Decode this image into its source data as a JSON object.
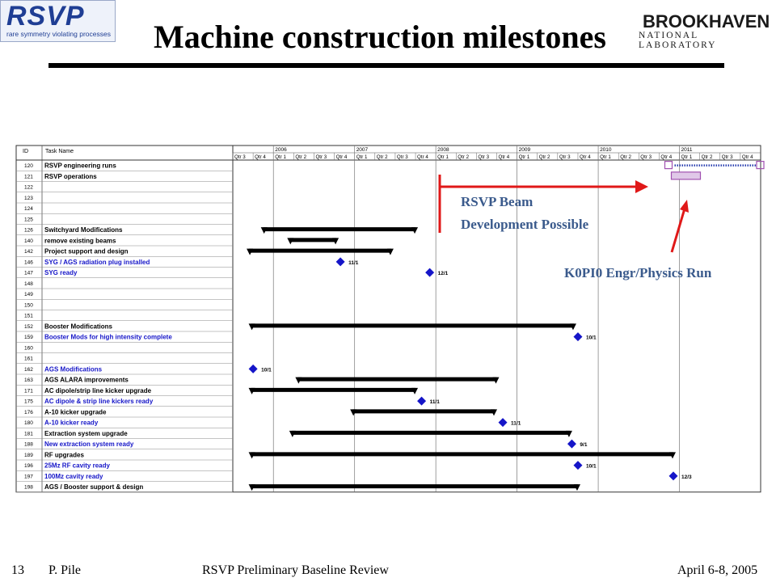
{
  "header": {
    "logo_text": "RSVP",
    "logo_subtitle": "rare symmetry violating processes",
    "title": "Machine construction milestones",
    "lab_name": "BROOKHAVEN",
    "lab_subtitle": "NATIONAL LABORATORY"
  },
  "footer": {
    "slide_number": "13",
    "author": "P. Pile",
    "event": "RSVP Preliminary Baseline Review",
    "date": "April 6-8, 2005"
  },
  "annotations": {
    "beam_dev_line1": "RSVP Beam",
    "beam_dev_line2": "Development Possible",
    "k0pi0": "K0PI0 Engr/Physics Run"
  },
  "colors": {
    "milestone": "#1515c8",
    "arrow": "#e01818",
    "highlight_bar": "#a050b0",
    "blue_text": "#1515c8"
  },
  "chart_data": {
    "type": "table",
    "columns": [
      "ID",
      "Task Name"
    ],
    "years": [
      "2006",
      "2007",
      "2008",
      "2009",
      "2010",
      "2011"
    ],
    "quarter_labels": [
      "Qtr 3",
      "Qtr 4",
      "Qtr 1",
      "Qtr 2",
      "Qtr 3",
      "Qtr 4",
      "Qtr 1",
      "Qtr 2",
      "Qtr 3",
      "Qtr 4",
      "Qtr 1",
      "Qtr 2",
      "Qtr 3",
      "Qtr 4",
      "Qtr 1",
      "Qtr 2",
      "Qtr 3",
      "Qtr 4",
      "Qtr 1",
      "Qtr 2",
      "Qtr 3",
      "Qtr 4",
      "Qtr 1",
      "Qtr 2",
      "Qtr 3",
      "Qtr 4"
    ],
    "rows": [
      {
        "id": "120",
        "name": "RSVP engineering runs",
        "style": "bold"
      },
      {
        "id": "121",
        "name": "RSVP operations",
        "style": "bold"
      },
      {
        "id": "122",
        "name": ""
      },
      {
        "id": "123",
        "name": ""
      },
      {
        "id": "124",
        "name": ""
      },
      {
        "id": "125",
        "name": ""
      },
      {
        "id": "126",
        "name": "Switchyard Modifications",
        "style": "bold",
        "bar": [
          1.5,
          9.0
        ]
      },
      {
        "id": "140",
        "name": "remove existing beams",
        "style": "bold",
        "bar": [
          2.8,
          5.1
        ]
      },
      {
        "id": "142",
        "name": "Project support and design",
        "style": "bold",
        "bar": [
          0.8,
          7.8
        ]
      },
      {
        "id": "146",
        "name": "SYG / AGS radiation plug installed",
        "style": "blue",
        "milestone": 5.3,
        "label": "11/1"
      },
      {
        "id": "147",
        "name": "SYG ready",
        "style": "blue",
        "milestone": 9.7,
        "label": "12/1"
      },
      {
        "id": "148",
        "name": ""
      },
      {
        "id": "149",
        "name": ""
      },
      {
        "id": "150",
        "name": ""
      },
      {
        "id": "151",
        "name": ""
      },
      {
        "id": "152",
        "name": "Booster Modifications",
        "style": "bold",
        "bar": [
          0.9,
          16.8
        ]
      },
      {
        "id": "159",
        "name": "Booster Mods for high intensity complete",
        "style": "blue",
        "milestone": 17.0,
        "label": "10/1"
      },
      {
        "id": "160",
        "name": ""
      },
      {
        "id": "161",
        "name": ""
      },
      {
        "id": "162",
        "name": "AGS Modifications",
        "style": "blue",
        "milestone": 1.0,
        "label": "10/1"
      },
      {
        "id": "163",
        "name": "AGS ALARA improvements",
        "style": "bold",
        "bar": [
          3.2,
          13.0
        ]
      },
      {
        "id": "171",
        "name": "AC dipole/strip line kicker upgrade",
        "style": "bold",
        "bar": [
          0.9,
          9.0
        ]
      },
      {
        "id": "175",
        "name": "AC dipole & strip line kickers ready",
        "style": "blue",
        "milestone": 9.3,
        "label": "11/1"
      },
      {
        "id": "176",
        "name": "A-10 kicker upgrade",
        "style": "bold",
        "bar": [
          5.9,
          12.9
        ]
      },
      {
        "id": "180",
        "name": "A-10 kicker ready",
        "style": "blue",
        "milestone": 13.3,
        "label": "11/1"
      },
      {
        "id": "181",
        "name": "Extraction system upgrade",
        "style": "bold",
        "bar": [
          2.9,
          16.6
        ]
      },
      {
        "id": "188",
        "name": "New extraction system ready",
        "style": "blue",
        "milestone": 16.7,
        "label": "9/1"
      },
      {
        "id": "189",
        "name": "RF upgrades",
        "style": "bold",
        "bar": [
          0.9,
          21.7
        ]
      },
      {
        "id": "196",
        "name": "25Mz RF cavity ready",
        "style": "blue",
        "milestone": 17.0,
        "label": "10/1"
      },
      {
        "id": "197",
        "name": "100Mz cavity ready",
        "style": "blue",
        "milestone": 21.7,
        "label": "12/3"
      },
      {
        "id": "198",
        "name": "AGS / Booster support & design",
        "style": "bold",
        "bar": [
          0.9,
          17.0
        ]
      }
    ]
  }
}
